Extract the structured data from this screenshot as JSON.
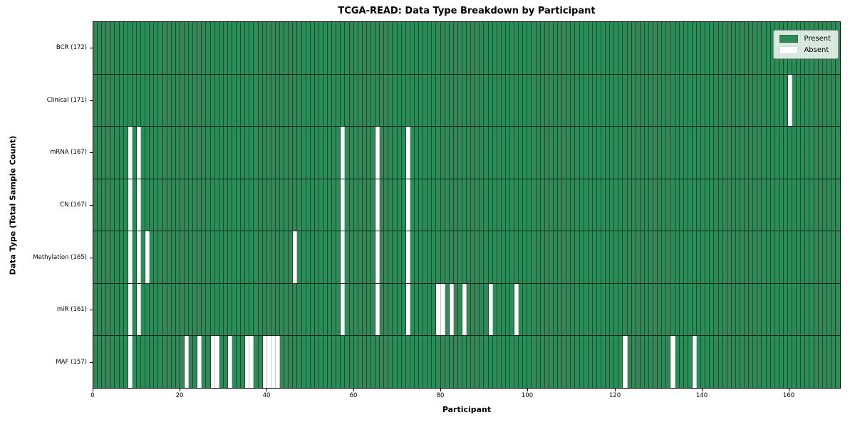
{
  "title": "TCGA-READ: Data Type Breakdown by Participant",
  "chart_data": {
    "type": "heatmap",
    "title": "TCGA-READ: Data Type Breakdown by Participant",
    "xlabel": "Participant",
    "ylabel": "Data Type (Total Sample Count)",
    "n_participants": 172,
    "x_ticks": [
      0,
      20,
      40,
      60,
      80,
      100,
      120,
      140,
      160
    ],
    "x_range": [
      0,
      172
    ],
    "grid": "cell-edges",
    "legend_position": "upper right",
    "states": {
      "present_label": "Present",
      "absent_label": "Absent"
    },
    "colors": {
      "present": "#2e8b57",
      "absent": "#ffffff",
      "edge": "#0a2314",
      "background": "#ffffff"
    },
    "legend": [
      {
        "label": "Present",
        "color": "#2e8b57"
      },
      {
        "label": "Absent",
        "color": "#ffffff"
      }
    ],
    "rows": [
      {
        "label": "BCR (172)",
        "name": "BCR",
        "total": 172,
        "absent_participants": []
      },
      {
        "label": "Clinical (171)",
        "name": "Clinical",
        "total": 171,
        "absent_participants": [
          160
        ]
      },
      {
        "label": "mRNA (167)",
        "name": "mRNA",
        "total": 167,
        "absent_participants": [
          8,
          10,
          57,
          65,
          72
        ]
      },
      {
        "label": "CN (167)",
        "name": "CN",
        "total": 167,
        "absent_participants": [
          8,
          10,
          57,
          65,
          72
        ]
      },
      {
        "label": "Methylation (165)",
        "name": "Methylation",
        "total": 165,
        "absent_participants": [
          8,
          10,
          12,
          46,
          57,
          65,
          72
        ]
      },
      {
        "label": "miR (161)",
        "name": "miR",
        "total": 161,
        "absent_participants": [
          8,
          10,
          57,
          65,
          72,
          79,
          80,
          82,
          85,
          91,
          97
        ]
      },
      {
        "label": "MAF (157)",
        "name": "MAF",
        "total": 157,
        "absent_participants": [
          8,
          21,
          24,
          27,
          28,
          31,
          35,
          36,
          39,
          40,
          41,
          42,
          122,
          133,
          138
        ]
      }
    ]
  }
}
